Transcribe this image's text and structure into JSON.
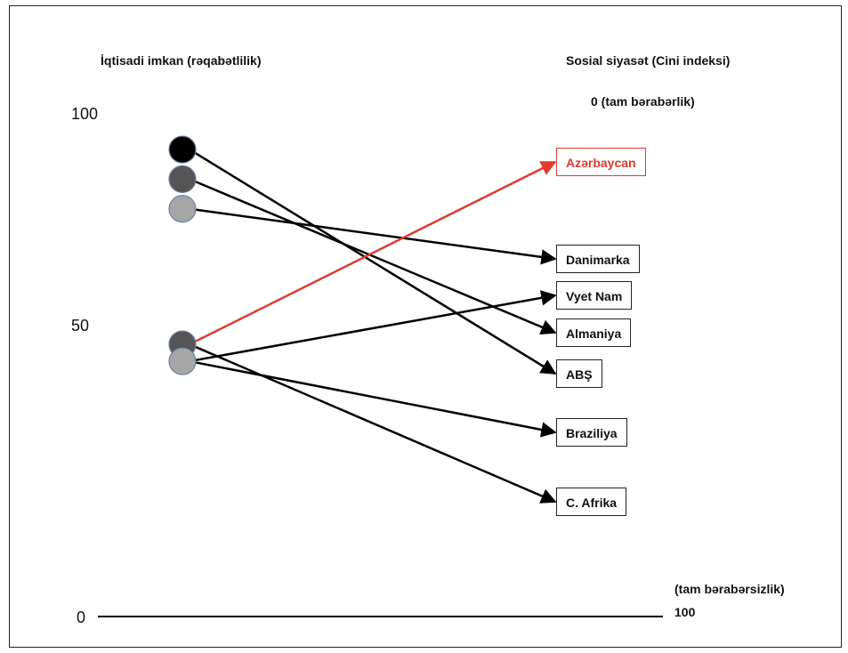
{
  "left_axis": {
    "title": "İqtisadi imkan (rəqabətlilik)",
    "ticks": [
      {
        "label": "100",
        "value": 100
      },
      {
        "label": "50",
        "value": 50
      },
      {
        "label": "0",
        "value": 0
      }
    ]
  },
  "right_axis": {
    "title": "Sosial siyasət (Cini indeksi)",
    "top_note": "0 (tam bərabərlik)",
    "bottom_note": "(tam bərabərsizlik)",
    "bottom_value": "100"
  },
  "nodes": [
    {
      "id": "n1",
      "value": 92,
      "color": "#000000"
    },
    {
      "id": "n2",
      "value": 85,
      "color": "#555555"
    },
    {
      "id": "n3",
      "value": 78,
      "color": "#a6a6a6"
    },
    {
      "id": "n4",
      "value": 46,
      "color": "#555555"
    },
    {
      "id": "n5",
      "value": 42,
      "color": "#a6a6a6"
    }
  ],
  "countries": [
    {
      "id": "azerbaycan",
      "label": "Azərbaycan",
      "accent": true
    },
    {
      "id": "danimarka",
      "label": "Danimarka",
      "accent": false
    },
    {
      "id": "vyetnam",
      "label": "Vyet Nam",
      "accent": false
    },
    {
      "id": "almaniya",
      "label": "Almaniya",
      "accent": false
    },
    {
      "id": "abs",
      "label": "ABŞ",
      "accent": false
    },
    {
      "id": "braziliya",
      "label": "Braziliya",
      "accent": false
    },
    {
      "id": "cafrika",
      "label": "C. Afrika",
      "accent": false
    }
  ],
  "links": [
    {
      "from": "n1",
      "to": "abs",
      "color": "#000000"
    },
    {
      "from": "n2",
      "to": "almaniya",
      "color": "#000000"
    },
    {
      "from": "n3",
      "to": "danimarka",
      "color": "#000000"
    },
    {
      "from": "n4",
      "to": "azerbaycan",
      "color": "#e03a2f"
    },
    {
      "from": "n4",
      "to": "cafrika",
      "color": "#000000"
    },
    {
      "from": "n5",
      "to": "vyetnam",
      "color": "#000000"
    },
    {
      "from": "n5",
      "to": "braziliya",
      "color": "#000000"
    }
  ]
}
